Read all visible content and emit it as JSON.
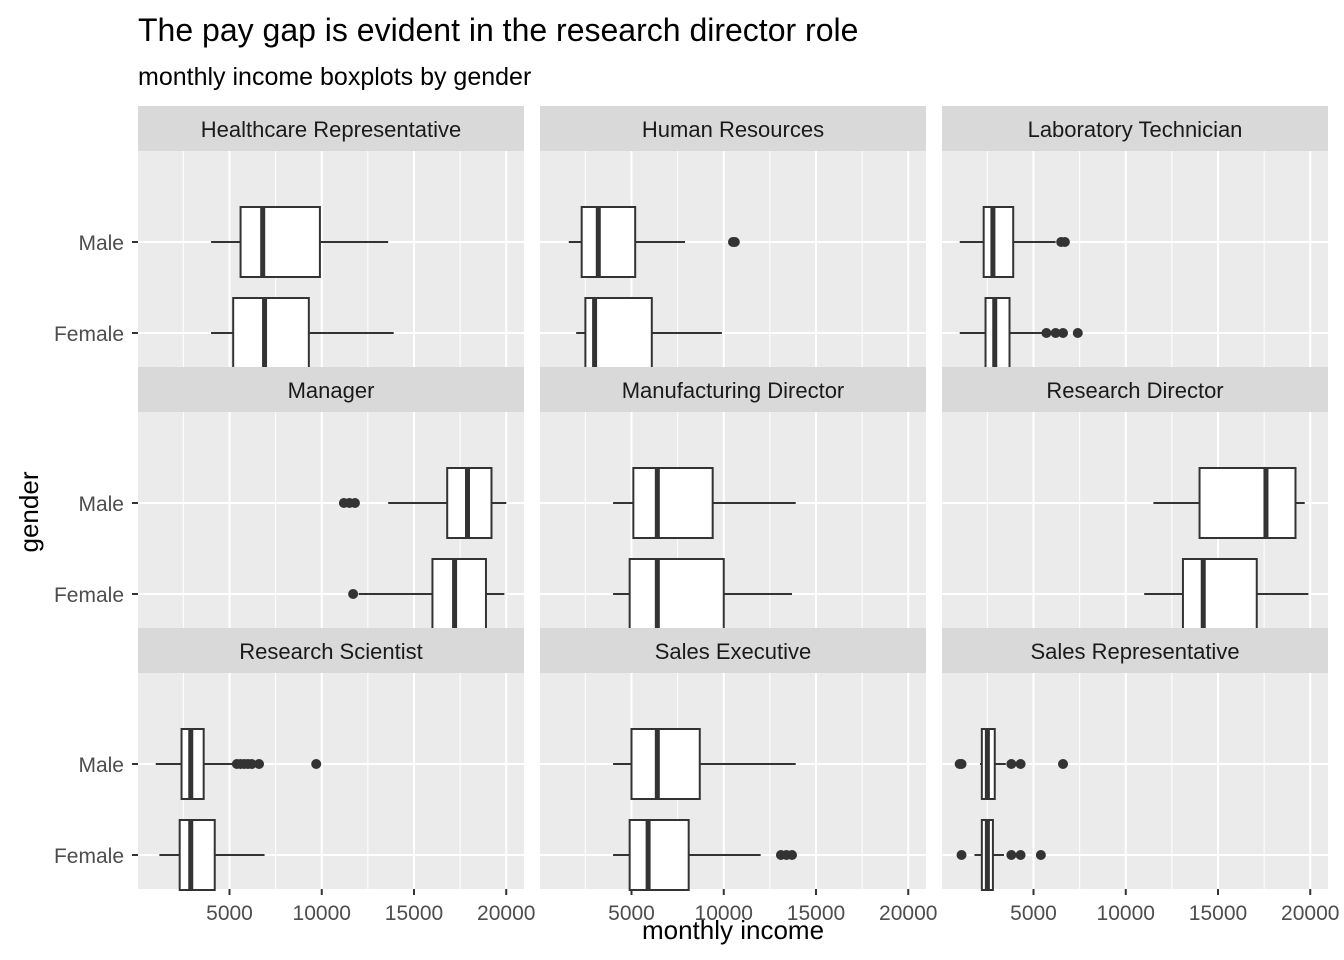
{
  "chart_data": {
    "type": "boxplot",
    "title": "The pay gap is evident in the research director role",
    "subtitle": "monthly income boxplots by gender",
    "xlabel": "monthly income",
    "ylabel": "gender",
    "x_ticks": [
      5000,
      10000,
      15000,
      20000
    ],
    "x_tick_labels": [
      "5000",
      "10000",
      "15000",
      "20000"
    ],
    "xlim": [
      0,
      20500
    ],
    "categories": [
      "Male",
      "Female"
    ],
    "grid": true,
    "legend": "none",
    "colors": {
      "panel_bg": "#ebebeb",
      "strip_bg": "#d9d9d9",
      "grid": "#ffffff",
      "box_fill": "#ffffff",
      "box_line": "#333333",
      "outlier": "#333333"
    },
    "panels": [
      {
        "facet": "Healthcare Representative",
        "boxes": [
          {
            "gender": "Male",
            "min": 4000,
            "q1": 5600,
            "median": 6800,
            "q3": 9900,
            "max": 13600,
            "outliers": []
          },
          {
            "gender": "Female",
            "min": 4000,
            "q1": 5200,
            "median": 6900,
            "q3": 9300,
            "max": 13900,
            "outliers": []
          }
        ]
      },
      {
        "facet": "Human Resources",
        "boxes": [
          {
            "gender": "Male",
            "min": 1600,
            "q1": 2300,
            "median": 3200,
            "q3": 5200,
            "max": 7900,
            "outliers": [
              10500,
              10600
            ]
          },
          {
            "gender": "Female",
            "min": 2000,
            "q1": 2500,
            "median": 3000,
            "q3": 6100,
            "max": 9900,
            "outliers": []
          }
        ]
      },
      {
        "facet": "Laboratory Technician",
        "boxes": [
          {
            "gender": "Male",
            "min": 1000,
            "q1": 2300,
            "median": 2800,
            "q3": 3900,
            "max": 6200,
            "outliers": [
              6500,
              6700
            ]
          },
          {
            "gender": "Female",
            "min": 1000,
            "q1": 2400,
            "median": 2900,
            "q3": 3700,
            "max": 5500,
            "outliers": [
              5700,
              6200,
              6600,
              7400
            ]
          }
        ]
      },
      {
        "facet": "Manager",
        "boxes": [
          {
            "gender": "Male",
            "min": 13600,
            "q1": 16800,
            "median": 17900,
            "q3": 19200,
            "max": 20000,
            "outliers": [
              11200,
              11500,
              11800
            ]
          },
          {
            "gender": "Female",
            "min": 12000,
            "q1": 16000,
            "median": 17200,
            "q3": 18900,
            "max": 19900,
            "outliers": [
              11700
            ]
          }
        ]
      },
      {
        "facet": "Manufacturing Director",
        "boxes": [
          {
            "gender": "Male",
            "min": 4000,
            "q1": 5100,
            "median": 6400,
            "q3": 9400,
            "max": 13900,
            "outliers": []
          },
          {
            "gender": "Female",
            "min": 4000,
            "q1": 4900,
            "median": 6400,
            "q3": 10000,
            "max": 13700,
            "outliers": []
          }
        ]
      },
      {
        "facet": "Research Director",
        "boxes": [
          {
            "gender": "Male",
            "min": 11500,
            "q1": 14000,
            "median": 17600,
            "q3": 19200,
            "max": 19700,
            "outliers": []
          },
          {
            "gender": "Female",
            "min": 11000,
            "q1": 13100,
            "median": 14200,
            "q3": 17100,
            "max": 19900,
            "outliers": []
          }
        ]
      },
      {
        "facet": "Research Scientist",
        "boxes": [
          {
            "gender": "Male",
            "min": 1000,
            "q1": 2400,
            "median": 2900,
            "q3": 3600,
            "max": 5300,
            "outliers": [
              5400,
              5600,
              5800,
              6000,
              6200,
              6600,
              9700
            ]
          },
          {
            "gender": "Female",
            "min": 1200,
            "q1": 2300,
            "median": 2900,
            "q3": 4200,
            "max": 6900,
            "outliers": []
          }
        ]
      },
      {
        "facet": "Sales Executive",
        "boxes": [
          {
            "gender": "Male",
            "min": 4000,
            "q1": 5000,
            "median": 6400,
            "q3": 8700,
            "max": 13900,
            "outliers": []
          },
          {
            "gender": "Female",
            "min": 4000,
            "q1": 4900,
            "median": 5900,
            "q3": 8100,
            "max": 12000,
            "outliers": [
              13100,
              13400,
              13700
            ]
          }
        ]
      },
      {
        "facet": "Sales Representative",
        "boxes": [
          {
            "gender": "Male",
            "min": 2100,
            "q1": 2200,
            "median": 2500,
            "q3": 2900,
            "max": 3500,
            "outliers": [
              1000,
              1100,
              3800,
              4300,
              6600
            ]
          },
          {
            "gender": "Female",
            "min": 1800,
            "q1": 2200,
            "median": 2500,
            "q3": 2800,
            "max": 3400,
            "outliers": [
              1100,
              3800,
              4300,
              5400
            ]
          }
        ]
      }
    ]
  }
}
